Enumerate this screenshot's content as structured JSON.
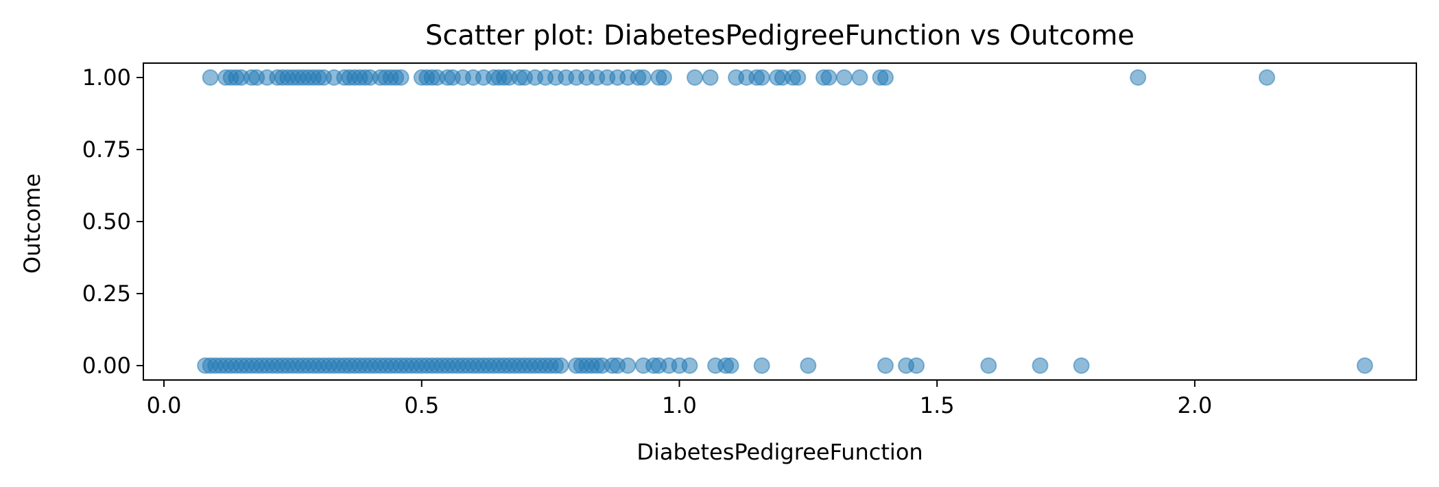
{
  "chart_data": {
    "type": "scatter",
    "title": "Scatter plot: DiabetesPedigreeFunction vs Outcome",
    "xlabel": "DiabetesPedigreeFunction",
    "ylabel": "Outcome",
    "xlim": [
      -0.04,
      2.43
    ],
    "ylim": [
      -0.05,
      1.05
    ],
    "xticks": [
      0.0,
      0.5,
      1.0,
      1.5,
      2.0
    ],
    "xtick_labels": [
      "0.0",
      "0.5",
      "1.0",
      "1.5",
      "2.0"
    ],
    "yticks": [
      0.0,
      0.25,
      0.5,
      0.75,
      1.0
    ],
    "ytick_labels": [
      "0.00",
      "0.25",
      "0.50",
      "0.75",
      "1.00"
    ],
    "grid": false,
    "marker_color": "#1f77b4",
    "marker_alpha": 0.5,
    "series": [
      {
        "y": 1,
        "x": [
          0.09,
          0.12,
          0.13,
          0.14,
          0.15,
          0.17,
          0.18,
          0.2,
          0.22,
          0.23,
          0.24,
          0.25,
          0.26,
          0.27,
          0.28,
          0.29,
          0.3,
          0.31,
          0.33,
          0.35,
          0.36,
          0.37,
          0.38,
          0.39,
          0.4,
          0.42,
          0.43,
          0.44,
          0.45,
          0.46,
          0.5,
          0.51,
          0.52,
          0.53,
          0.55,
          0.56,
          0.58,
          0.6,
          0.62,
          0.64,
          0.65,
          0.66,
          0.67,
          0.69,
          0.7,
          0.72,
          0.74,
          0.76,
          0.78,
          0.8,
          0.82,
          0.84,
          0.86,
          0.88,
          0.9,
          0.92,
          0.93,
          0.96,
          0.97,
          1.03,
          1.06,
          1.11,
          1.13,
          1.15,
          1.16,
          1.19,
          1.2,
          1.22,
          1.23,
          1.28,
          1.29,
          1.32,
          1.35,
          1.39,
          1.4,
          1.89,
          2.14
        ]
      },
      {
        "y": 0,
        "x": [
          0.08,
          0.09,
          0.1,
          0.11,
          0.12,
          0.13,
          0.14,
          0.15,
          0.16,
          0.17,
          0.18,
          0.19,
          0.2,
          0.21,
          0.22,
          0.23,
          0.24,
          0.25,
          0.26,
          0.27,
          0.28,
          0.29,
          0.3,
          0.31,
          0.32,
          0.33,
          0.34,
          0.35,
          0.36,
          0.37,
          0.38,
          0.39,
          0.4,
          0.41,
          0.42,
          0.43,
          0.44,
          0.45,
          0.46,
          0.47,
          0.48,
          0.49,
          0.5,
          0.51,
          0.52,
          0.53,
          0.54,
          0.55,
          0.56,
          0.57,
          0.58,
          0.59,
          0.6,
          0.61,
          0.62,
          0.63,
          0.64,
          0.65,
          0.66,
          0.67,
          0.68,
          0.69,
          0.7,
          0.71,
          0.72,
          0.73,
          0.74,
          0.75,
          0.76,
          0.77,
          0.8,
          0.81,
          0.82,
          0.83,
          0.84,
          0.85,
          0.87,
          0.88,
          0.9,
          0.93,
          0.95,
          0.96,
          0.98,
          1.0,
          1.02,
          1.07,
          1.09,
          1.1,
          1.16,
          1.25,
          1.4,
          1.44,
          1.46,
          1.6,
          1.7,
          1.78,
          2.33
        ]
      }
    ]
  }
}
